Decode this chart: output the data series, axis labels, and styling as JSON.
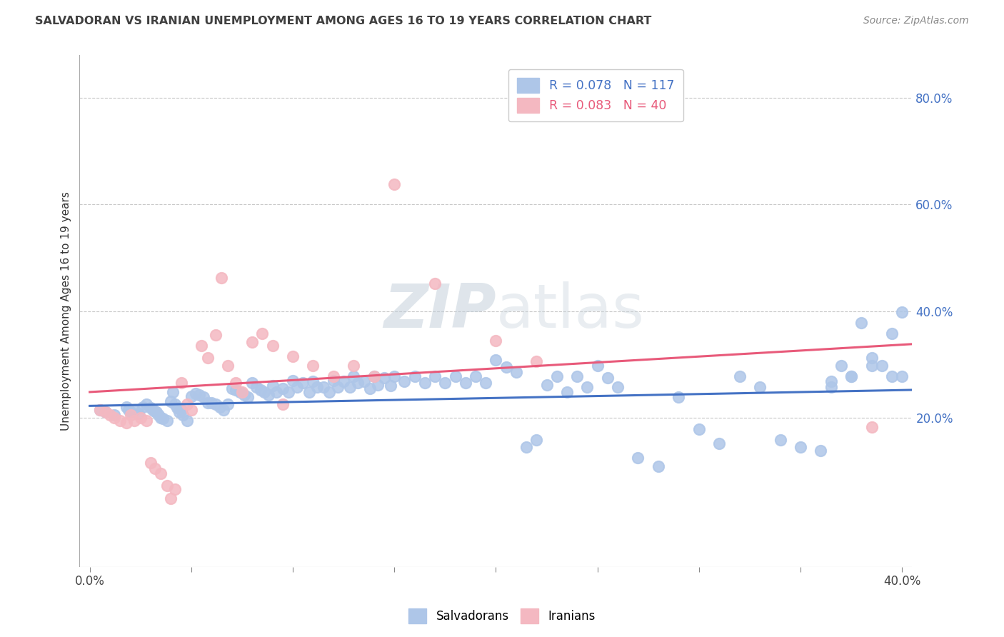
{
  "title": "SALVADORAN VS IRANIAN UNEMPLOYMENT AMONG AGES 16 TO 19 YEARS CORRELATION CHART",
  "source": "Source: ZipAtlas.com",
  "ylabel": "Unemployment Among Ages 16 to 19 years",
  "right_yticks": [
    "80.0%",
    "60.0%",
    "40.0%",
    "20.0%"
  ],
  "right_ytick_vals": [
    0.8,
    0.6,
    0.4,
    0.2
  ],
  "xlim": [
    -0.005,
    0.405
  ],
  "ylim": [
    -0.08,
    0.88
  ],
  "salvadoran_color": "#aec6e8",
  "iranian_color": "#f4b8c1",
  "trend_salvadoran_color": "#4472c4",
  "trend_iranian_color": "#e85a7a",
  "watermark_color": "#d0dce8",
  "title_color": "#404040",
  "source_color": "#888888",
  "background_color": "#ffffff",
  "grid_color": "#c8c8c8",
  "salvadoran_x": [
    0.005,
    0.008,
    0.012,
    0.018,
    0.019,
    0.02,
    0.022,
    0.024,
    0.026,
    0.028,
    0.03,
    0.031,
    0.032,
    0.033,
    0.034,
    0.035,
    0.036,
    0.038,
    0.04,
    0.041,
    0.042,
    0.043,
    0.044,
    0.045,
    0.046,
    0.048,
    0.05,
    0.052,
    0.054,
    0.056,
    0.058,
    0.06,
    0.062,
    0.064,
    0.066,
    0.068,
    0.07,
    0.072,
    0.074,
    0.076,
    0.078,
    0.08,
    0.082,
    0.084,
    0.086,
    0.088,
    0.09,
    0.092,
    0.095,
    0.098,
    0.1,
    0.102,
    0.105,
    0.108,
    0.11,
    0.112,
    0.115,
    0.118,
    0.12,
    0.122,
    0.125,
    0.128,
    0.13,
    0.132,
    0.135,
    0.138,
    0.14,
    0.142,
    0.145,
    0.148,
    0.15,
    0.155,
    0.16,
    0.165,
    0.17,
    0.175,
    0.18,
    0.185,
    0.19,
    0.195,
    0.2,
    0.205,
    0.21,
    0.215,
    0.22,
    0.225,
    0.23,
    0.235,
    0.24,
    0.245,
    0.25,
    0.255,
    0.26,
    0.27,
    0.28,
    0.29,
    0.3,
    0.31,
    0.32,
    0.33,
    0.34,
    0.35,
    0.36,
    0.365,
    0.37,
    0.375,
    0.38,
    0.385,
    0.39,
    0.395,
    0.4,
    0.4,
    0.395,
    0.385,
    0.375,
    0.365
  ],
  "salvadoran_y": [
    0.215,
    0.21,
    0.205,
    0.22,
    0.215,
    0.21,
    0.215,
    0.208,
    0.22,
    0.225,
    0.218,
    0.215,
    0.212,
    0.21,
    0.205,
    0.2,
    0.198,
    0.195,
    0.23,
    0.248,
    0.225,
    0.218,
    0.21,
    0.215,
    0.205,
    0.195,
    0.24,
    0.245,
    0.242,
    0.238,
    0.228,
    0.228,
    0.225,
    0.22,
    0.215,
    0.225,
    0.255,
    0.252,
    0.248,
    0.242,
    0.238,
    0.265,
    0.258,
    0.252,
    0.248,
    0.242,
    0.26,
    0.248,
    0.255,
    0.248,
    0.27,
    0.258,
    0.265,
    0.248,
    0.268,
    0.258,
    0.258,
    0.248,
    0.27,
    0.258,
    0.268,
    0.258,
    0.278,
    0.265,
    0.268,
    0.255,
    0.278,
    0.262,
    0.275,
    0.26,
    0.278,
    0.268,
    0.278,
    0.265,
    0.278,
    0.265,
    0.278,
    0.265,
    0.278,
    0.265,
    0.308,
    0.295,
    0.285,
    0.145,
    0.158,
    0.262,
    0.278,
    0.248,
    0.278,
    0.258,
    0.298,
    0.275,
    0.258,
    0.125,
    0.108,
    0.238,
    0.178,
    0.152,
    0.278,
    0.258,
    0.158,
    0.145,
    0.138,
    0.268,
    0.298,
    0.278,
    0.378,
    0.312,
    0.298,
    0.278,
    0.398,
    0.278,
    0.358,
    0.298,
    0.278,
    0.258
  ],
  "iranian_x": [
    0.005,
    0.008,
    0.01,
    0.012,
    0.015,
    0.018,
    0.02,
    0.022,
    0.025,
    0.028,
    0.03,
    0.032,
    0.035,
    0.038,
    0.04,
    0.042,
    0.045,
    0.048,
    0.05,
    0.055,
    0.058,
    0.062,
    0.065,
    0.068,
    0.072,
    0.075,
    0.08,
    0.085,
    0.09,
    0.095,
    0.1,
    0.11,
    0.12,
    0.13,
    0.14,
    0.15,
    0.17,
    0.2,
    0.22,
    0.385
  ],
  "iranian_y": [
    0.215,
    0.21,
    0.205,
    0.2,
    0.195,
    0.19,
    0.205,
    0.195,
    0.2,
    0.195,
    0.115,
    0.105,
    0.095,
    0.072,
    0.048,
    0.065,
    0.265,
    0.225,
    0.215,
    0.335,
    0.312,
    0.355,
    0.462,
    0.298,
    0.265,
    0.248,
    0.342,
    0.358,
    0.335,
    0.225,
    0.315,
    0.298,
    0.278,
    0.298,
    0.278,
    0.638,
    0.452,
    0.345,
    0.305,
    0.182
  ],
  "trend_salv_x0": 0.0,
  "trend_salv_x1": 0.405,
  "trend_salv_y0": 0.222,
  "trend_salv_y1": 0.252,
  "trend_iran_x0": 0.0,
  "trend_iran_x1": 0.405,
  "trend_iran_y0": 0.248,
  "trend_iran_y1": 0.338
}
